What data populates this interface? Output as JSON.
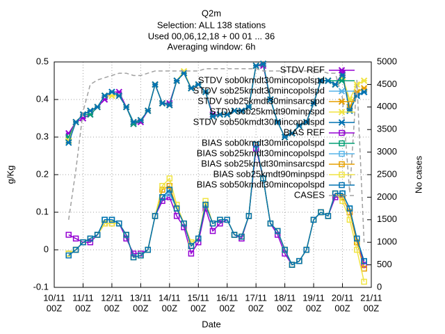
{
  "chart_data": {
    "type": "line",
    "title": [
      "Q2m",
      "Selection: ALL    138 stations",
      "Used 00,06,12,18 + 00 01 ... 36",
      "Averaging window:  6h"
    ],
    "xlabel": "Date",
    "ylabel": "g/Kg",
    "y2label": "No cases",
    "grid": true,
    "legend": "top right",
    "xlim": [
      0,
      11
    ],
    "xticks": [
      {
        "value": 0,
        "label": [
          "10/11",
          "00Z"
        ]
      },
      {
        "value": 1,
        "label": [
          "11/11",
          "00Z"
        ]
      },
      {
        "value": 2,
        "label": [
          "12/11",
          "00Z"
        ]
      },
      {
        "value": 3,
        "label": [
          "13/11",
          "00Z"
        ]
      },
      {
        "value": 4,
        "label": [
          "14/11",
          "00Z"
        ]
      },
      {
        "value": 5,
        "label": [
          "15/11",
          "00Z"
        ]
      },
      {
        "value": 6,
        "label": [
          "16/11",
          "00Z"
        ]
      },
      {
        "value": 7,
        "label": [
          "17/11",
          "00Z"
        ]
      },
      {
        "value": 8,
        "label": [
          "18/11",
          "00Z"
        ]
      },
      {
        "value": 9,
        "label": [
          "19/11",
          "00Z"
        ]
      },
      {
        "value": 10,
        "label": [
          "20/11",
          "00Z"
        ]
      },
      {
        "value": 11,
        "label": [
          "21/11",
          "00Z"
        ]
      }
    ],
    "ylim": [
      -0.1,
      0.5
    ],
    "yticks": [
      -0.1,
      0,
      0.1,
      0.2,
      0.3,
      0.4,
      0.5
    ],
    "y2lim": [
      0,
      5000
    ],
    "y2ticks": [
      0,
      500,
      1000,
      1500,
      2000,
      2500,
      3000,
      3500,
      4000,
      4500,
      5000
    ],
    "x": [
      0.5,
      0.75,
      1,
      1.25,
      1.5,
      1.75,
      2,
      2.25,
      2.5,
      2.75,
      3,
      3.25,
      3.5,
      3.75,
      4,
      4.25,
      4.5,
      4.75,
      5,
      5.25,
      5.5,
      5.75,
      6,
      6.25,
      6.5,
      6.75,
      7,
      7.25,
      7.5,
      7.75,
      8,
      8.25,
      8.5,
      8.75,
      9,
      9.25,
      9.5,
      9.75,
      10,
      10.25,
      10.5,
      10.75
    ],
    "series": [
      {
        "name": "STDV REF",
        "color": "#9400d3",
        "marker": "cross",
        "values": [
          0.31,
          0.34,
          0.35,
          0.36,
          0.38,
          0.4,
          0.42,
          0.42,
          0.38,
          0.335,
          0.34,
          0.37,
          0.44,
          0.39,
          0.39,
          0.45,
          0.47,
          0.43,
          0.44,
          0.42,
          0.36,
          0.36,
          0.36,
          0.37,
          0.37,
          0.38,
          0.49,
          0.49,
          0.4,
          0.34,
          0.3,
          0.31,
          0.33,
          0.34,
          0.39,
          0.45,
          0.45,
          0.44,
          0.47,
          0.38,
          0.41,
          0.42
        ]
      },
      {
        "name": "STDV sob0kmdt30mincopolspd",
        "color": "#009e73",
        "marker": "cross",
        "values": [
          0.3,
          0.34,
          0.36,
          0.36,
          0.38,
          0.41,
          0.42,
          0.41,
          0.38,
          0.335,
          0.345,
          0.37,
          0.44,
          0.39,
          0.385,
          0.45,
          0.47,
          0.43,
          0.44,
          0.42,
          0.355,
          0.36,
          0.36,
          0.37,
          0.37,
          0.38,
          0.49,
          0.495,
          0.4,
          0.34,
          0.3,
          0.31,
          0.33,
          0.34,
          0.39,
          0.45,
          0.45,
          0.44,
          0.465,
          0.38,
          0.41,
          0.42
        ]
      },
      {
        "name": "STDV sob25kmdt30mincopolspd",
        "color": "#56b4e9",
        "marker": "cross",
        "values": [
          0.29,
          0.34,
          0.36,
          0.37,
          0.38,
          0.41,
          0.42,
          0.41,
          0.38,
          0.34,
          0.345,
          0.37,
          0.44,
          0.39,
          0.385,
          0.45,
          0.47,
          0.43,
          0.44,
          0.42,
          0.355,
          0.36,
          0.36,
          0.37,
          0.37,
          0.38,
          0.49,
          0.495,
          0.4,
          0.34,
          0.3,
          0.31,
          0.33,
          0.34,
          0.39,
          0.45,
          0.45,
          0.44,
          0.465,
          0.38,
          0.41,
          0.42
        ]
      },
      {
        "name": "STDV sob25kmdt30minsarcspd",
        "color": "#e69f00",
        "marker": "cross",
        "values": [
          0.29,
          0.34,
          0.36,
          0.37,
          0.38,
          0.41,
          0.41,
          0.41,
          0.38,
          0.34,
          0.345,
          0.37,
          0.44,
          0.39,
          0.385,
          0.45,
          0.47,
          0.43,
          0.44,
          0.42,
          0.355,
          0.36,
          0.36,
          0.37,
          0.37,
          0.38,
          0.49,
          0.495,
          0.4,
          0.34,
          0.3,
          0.31,
          0.33,
          0.34,
          0.39,
          0.45,
          0.45,
          0.44,
          0.46,
          0.38,
          0.42,
          0.43
        ]
      },
      {
        "name": "STDV sob25kmdt90minpspd",
        "color": "#f0e442",
        "marker": "cross",
        "values": [
          0.29,
          0.34,
          0.36,
          0.37,
          0.38,
          0.41,
          0.41,
          0.41,
          0.38,
          0.34,
          0.345,
          0.37,
          0.44,
          0.39,
          0.385,
          0.45,
          0.475,
          0.43,
          0.44,
          0.42,
          0.355,
          0.36,
          0.36,
          0.37,
          0.37,
          0.38,
          0.49,
          0.495,
          0.4,
          0.34,
          0.3,
          0.31,
          0.33,
          0.34,
          0.39,
          0.45,
          0.45,
          0.44,
          0.46,
          0.4,
          0.44,
          0.45
        ]
      },
      {
        "name": "STDV sob50kmdt30mincopolspd",
        "color": "#0072b2",
        "marker": "cross",
        "values": [
          0.285,
          0.34,
          0.36,
          0.37,
          0.38,
          0.41,
          0.42,
          0.41,
          0.38,
          0.34,
          0.345,
          0.37,
          0.44,
          0.39,
          0.385,
          0.45,
          0.47,
          0.43,
          0.44,
          0.42,
          0.355,
          0.36,
          0.36,
          0.37,
          0.37,
          0.38,
          0.49,
          0.495,
          0.4,
          0.34,
          0.3,
          0.31,
          0.33,
          0.34,
          0.39,
          0.45,
          0.45,
          0.44,
          0.465,
          0.37,
          0.41,
          0.42
        ]
      },
      {
        "name": "BIAS REF",
        "color": "#9400d3",
        "marker": "square",
        "values": [
          0.04,
          0.03,
          0.02,
          0.02,
          0.04,
          0.07,
          0.07,
          0.07,
          0.03,
          -0.01,
          -0.01,
          0.0,
          0.09,
          0.13,
          0.14,
          0.09,
          0.06,
          -0.01,
          0.02,
          0.11,
          0.05,
          0.07,
          0.08,
          0.04,
          0.03,
          0.09,
          0.27,
          0.19,
          0.07,
          0.04,
          -0.01,
          -0.04,
          -0.03,
          0.0,
          0.08,
          0.1,
          0.09,
          0.14,
          0.14,
          0.1,
          0.03,
          -0.04
        ]
      },
      {
        "name": "BIAS sob0kmdt30mincopolspd",
        "color": "#009e73",
        "marker": "square",
        "values": [
          -0.01,
          0.0,
          0.02,
          0.03,
          0.04,
          0.08,
          0.08,
          0.07,
          0.04,
          -0.02,
          -0.015,
          0.0,
          0.09,
          0.14,
          0.15,
          0.11,
          0.07,
          0.01,
          0.03,
          0.12,
          0.07,
          0.08,
          0.08,
          0.04,
          0.035,
          0.09,
          0.28,
          0.19,
          0.07,
          0.05,
          0.0,
          -0.04,
          -0.03,
          0.0,
          0.08,
          0.1,
          0.09,
          0.15,
          0.15,
          0.11,
          0.03,
          -0.03
        ]
      },
      {
        "name": "BIAS sob25kmdt30mincopolspd",
        "color": "#56b4e9",
        "marker": "square",
        "values": [
          -0.01,
          0.0,
          0.02,
          0.03,
          0.04,
          0.08,
          0.08,
          0.07,
          0.04,
          -0.02,
          -0.015,
          0.0,
          0.09,
          0.14,
          0.15,
          0.11,
          0.07,
          0.01,
          0.03,
          0.12,
          0.07,
          0.08,
          0.08,
          0.04,
          0.035,
          0.09,
          0.28,
          0.19,
          0.07,
          0.05,
          0.0,
          -0.04,
          -0.03,
          0.0,
          0.08,
          0.1,
          0.09,
          0.15,
          0.15,
          0.11,
          0.03,
          -0.03
        ]
      },
      {
        "name": "BIAS sob25kmdt30minsarcspd",
        "color": "#e69f00",
        "marker": "square",
        "values": [
          -0.01,
          0.0,
          0.02,
          0.03,
          0.04,
          0.07,
          0.07,
          0.07,
          0.04,
          -0.02,
          -0.015,
          0.0,
          0.09,
          0.16,
          0.17,
          0.11,
          0.07,
          0.01,
          0.03,
          0.12,
          0.07,
          0.08,
          0.08,
          0.04,
          0.035,
          0.09,
          0.28,
          0.19,
          0.07,
          0.05,
          0.0,
          -0.04,
          -0.03,
          0.0,
          0.08,
          0.1,
          0.09,
          0.15,
          0.14,
          0.1,
          0.02,
          -0.05
        ]
      },
      {
        "name": "BIAS sob25kmdt90minpspd",
        "color": "#f0e442",
        "marker": "square",
        "values": [
          -0.01,
          0.0,
          0.02,
          0.03,
          0.04,
          0.07,
          0.07,
          0.07,
          0.04,
          -0.02,
          -0.015,
          0.0,
          0.09,
          0.17,
          0.19,
          0.12,
          0.07,
          0.02,
          0.03,
          0.13,
          0.07,
          0.08,
          0.08,
          0.04,
          0.035,
          0.09,
          0.28,
          0.19,
          0.07,
          0.05,
          0.0,
          -0.04,
          -0.03,
          0.0,
          0.08,
          0.1,
          0.09,
          0.15,
          0.13,
          0.08,
          0.0,
          -0.085
        ]
      },
      {
        "name": "BIAS sob50kmdt30mincopolspd",
        "color": "#0072b2",
        "marker": "square",
        "values": [
          -0.015,
          0.0,
          0.02,
          0.03,
          0.04,
          0.08,
          0.08,
          0.07,
          0.04,
          -0.02,
          -0.015,
          0.0,
          0.09,
          0.14,
          0.16,
          0.11,
          0.07,
          0.01,
          0.03,
          0.12,
          0.07,
          0.08,
          0.08,
          0.04,
          0.035,
          0.09,
          0.28,
          0.19,
          0.07,
          0.05,
          0.0,
          -0.04,
          -0.03,
          0.0,
          0.08,
          0.1,
          0.09,
          0.15,
          0.15,
          0.11,
          0.03,
          -0.03
        ]
      },
      {
        "name": "CASES",
        "color": "#a0a0a0",
        "marker": "none",
        "dashed": true,
        "axis": "y2",
        "values": [
          1500,
          2600,
          3900,
          4500,
          4600,
          4650,
          4700,
          4750,
          4750,
          4700,
          4700,
          4750,
          4800,
          4800,
          4800,
          4800,
          4800,
          4800,
          4800,
          4850,
          4850,
          4850,
          4850,
          4850,
          4850,
          4850,
          4850,
          4800,
          4800,
          4800,
          4800,
          4800,
          4800,
          4800,
          4800,
          4800,
          4750,
          4750,
          4200,
          2100,
          4600,
          1000
        ]
      }
    ]
  }
}
